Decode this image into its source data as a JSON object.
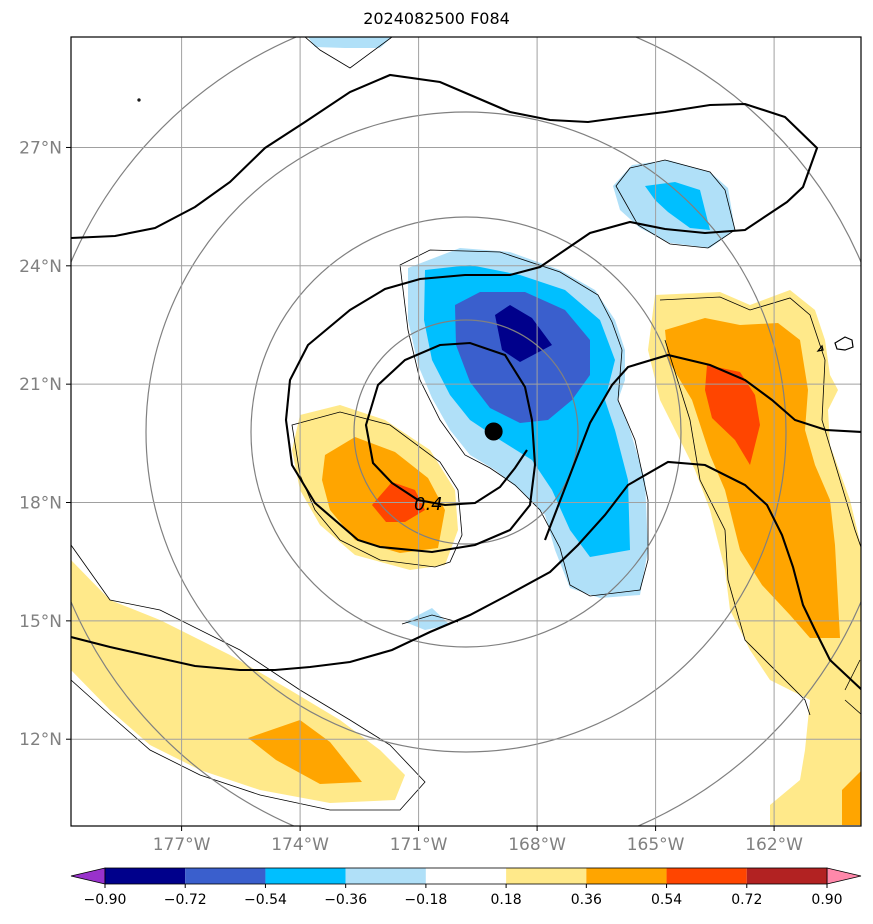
{
  "chart_data": {
    "type": "heatmap",
    "title": "2024082500 F084",
    "lon_range": [
      -179.8,
      -159.8
    ],
    "lat_range": [
      9.8,
      29.8
    ],
    "lon_ticks": [
      -177,
      -174,
      -171,
      -168,
      -165,
      -162
    ],
    "lon_tick_labels": [
      "177°W",
      "174°W",
      "171°W",
      "168°W",
      "165°W",
      "162°W"
    ],
    "lat_ticks": [
      12,
      15,
      18,
      21,
      24,
      27
    ],
    "lat_tick_labels": [
      "12°N",
      "15°N",
      "18°N",
      "21°N",
      "24°N",
      "27°N"
    ],
    "grid": true,
    "colorbar": {
      "position": "bottom",
      "extend": "both",
      "levels": [
        -0.9,
        -0.72,
        -0.54,
        -0.36,
        -0.18,
        0.18,
        0.36,
        0.54,
        0.72,
        0.9
      ],
      "level_labels": [
        "−0.90",
        "−0.72",
        "−0.54",
        "−0.36",
        "−0.18",
        "0.18",
        "0.36",
        "0.54",
        "0.72",
        "0.90"
      ],
      "colors": [
        "#9932cc",
        "#00008b",
        "#3a5fcd",
        "#00bfff",
        "#b0e0f8",
        "#ffffff",
        "#ffe98a",
        "#ffa500",
        "#ff4500",
        "#b22222",
        "#ff88aa"
      ]
    },
    "center_marker": {
      "lon": -169.1,
      "lat": 19.8
    },
    "contour_label": "0.4"
  }
}
